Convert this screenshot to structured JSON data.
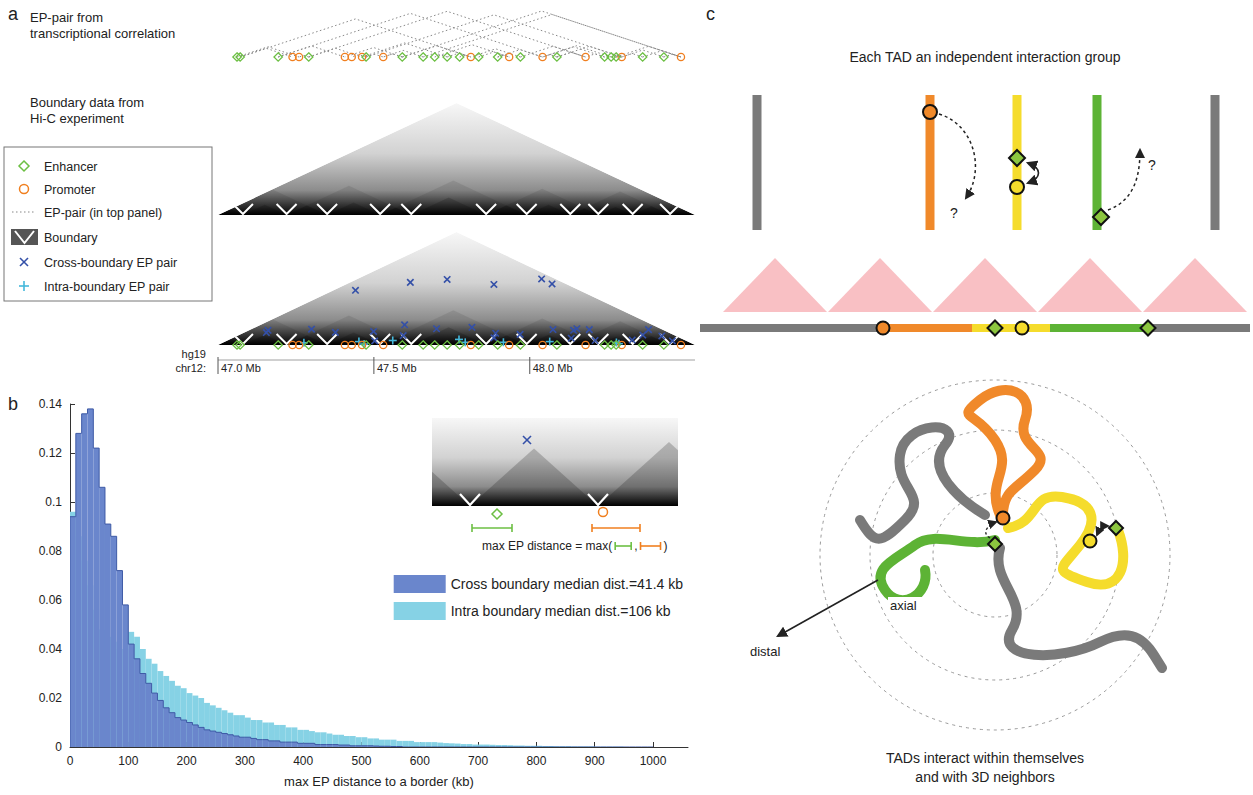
{
  "panel_letters": [
    "a",
    "b",
    "c"
  ],
  "panel_a": {
    "track_labels": {
      "ep_pairs": [
        "EP-pair from",
        "transcriptional correlation"
      ],
      "boundaries": [
        "Boundary data from",
        "Hi-C experiment"
      ]
    },
    "legend": [
      {
        "marker": "diamond",
        "label": "Enhancer",
        "color": "#6cbf43"
      },
      {
        "marker": "circle",
        "label": "Promoter",
        "color": "#f07f1f"
      },
      {
        "marker": "dotted_line",
        "label": "EP-pair (in top panel)",
        "color": "#888888"
      },
      {
        "marker": "boundary",
        "label": "Boundary",
        "color": "#555555"
      },
      {
        "marker": "cross",
        "label": "Cross-boundary EP pair",
        "color": "#3450a8"
      },
      {
        "marker": "plus",
        "label": "Intra-boundary EP pair",
        "color": "#45b8db"
      }
    ],
    "genome": "hg19",
    "chromosome": "chr12:",
    "xlim": [
      47.0,
      48.53
    ],
    "xticks": [
      {
        "value": 47.0,
        "label": "47.0 Mb"
      },
      {
        "value": 47.5,
        "label": "47.5 Mb"
      },
      {
        "value": 48.0,
        "label": "48.0 Mb"
      }
    ],
    "enhancers": [
      47.061,
      47.071,
      47.193,
      47.291,
      47.475,
      47.591,
      47.658,
      47.695,
      47.735,
      47.775,
      47.836,
      47.897,
      47.97,
      48.087,
      48.24,
      48.261,
      48.277,
      48.362,
      48.43
    ],
    "promoters": [
      47.239,
      47.26,
      47.407,
      47.429,
      47.462,
      47.53,
      47.811,
      47.934,
      48.041,
      48.179,
      48.295,
      48.485
    ],
    "boundaries": [
      47.08,
      47.22,
      47.35,
      47.52,
      47.62,
      47.86,
      47.99,
      48.13,
      48.22,
      48.33,
      48.45
    ],
    "cross_boundary_pairs": [
      [
        47.071,
        47.239
      ],
      [
        47.193,
        47.407
      ],
      [
        47.291,
        47.462
      ],
      [
        47.475,
        47.53
      ],
      [
        47.591,
        47.407
      ],
      [
        47.658,
        47.53
      ],
      [
        47.695,
        47.934
      ],
      [
        47.836,
        47.934
      ],
      [
        47.897,
        48.041
      ],
      [
        47.97,
        48.179
      ],
      [
        48.087,
        48.179
      ],
      [
        48.24,
        48.179
      ],
      [
        48.087,
        48.295
      ],
      [
        48.362,
        48.295
      ],
      [
        48.43,
        48.485
      ],
      [
        48.362,
        48.485
      ],
      [
        47.735,
        47.462
      ],
      [
        48.261,
        48.041
      ],
      [
        47.97,
        47.811
      ],
      [
        48.277,
        48.485
      ],
      [
        48.43,
        48.295
      ],
      [
        47.061,
        47.26
      ],
      [
        47.591,
        47.811
      ],
      [
        48.24,
        48.041
      ],
      [
        47.193,
        48.041
      ],
      [
        47.291,
        48.179
      ],
      [
        47.591,
        48.485
      ],
      [
        47.475,
        48.295
      ],
      [
        47.071,
        47.811
      ],
      [
        47.658,
        48.485
      ]
    ],
    "intra_boundary_pairs": [
      [
        47.291,
        47.26
      ],
      [
        47.475,
        47.429
      ],
      [
        47.475,
        47.462
      ],
      [
        47.591,
        47.53
      ],
      [
        47.735,
        47.811
      ],
      [
        47.775,
        47.811
      ],
      [
        47.897,
        47.934
      ],
      [
        48.087,
        48.041
      ],
      [
        48.261,
        48.295
      ],
      [
        48.277,
        48.295
      ]
    ]
  },
  "chart_data": {
    "type": "histogram",
    "xlabel": "max EP distance to a border (kb)",
    "bins": [
      0,
      10,
      20,
      30,
      40,
      50,
      60,
      70,
      80,
      90,
      100,
      110,
      120,
      130,
      140,
      150,
      160,
      170,
      180,
      190,
      200,
      210,
      220,
      230,
      240,
      250,
      260,
      270,
      280,
      290,
      300,
      310,
      320,
      330,
      340,
      350,
      360,
      370,
      380,
      390,
      400,
      410,
      420,
      430,
      440,
      450,
      460,
      470,
      480,
      490,
      500,
      510,
      520,
      530,
      540,
      550,
      560,
      570,
      580,
      590,
      600,
      610,
      620,
      630,
      640,
      650,
      660,
      670,
      680,
      690,
      700,
      710,
      720,
      730,
      740,
      750,
      760,
      770,
      780,
      790,
      800,
      810,
      820,
      830,
      840,
      850,
      860,
      870,
      880,
      890,
      900,
      910,
      920,
      930,
      940,
      950,
      960,
      970,
      980,
      990,
      1000
    ],
    "series": [
      {
        "name": "Cross boundary median dist.=41.4 kb",
        "color": "#6a86cc",
        "values": [
          0.094,
          0.128,
          0.136,
          0.138,
          0.122,
          0.106,
          0.091,
          0.086,
          0.072,
          0.058,
          0.042,
          0.036,
          0.03,
          0.026,
          0.022,
          0.019,
          0.016,
          0.014,
          0.012,
          0.011,
          0.01,
          0.009,
          0.008,
          0.007,
          0.0065,
          0.006,
          0.0055,
          0.005,
          0.0045,
          0.004,
          0.004,
          0.0035,
          0.003,
          0.003,
          0.0025,
          0.0025,
          0.002,
          0.002,
          0.002,
          0.0015,
          0.0015,
          0.0015,
          0.001,
          0.001,
          0.001,
          0.001,
          0.0008,
          0.0008,
          0.0005,
          0.0005,
          0.0005,
          0.0005,
          0.0004,
          0.0003,
          0.0003,
          0.0002,
          0.0002,
          0,
          0,
          0,
          0,
          0,
          0,
          0,
          0,
          0,
          0,
          0,
          0,
          0,
          0,
          0,
          0,
          0,
          0,
          0,
          0,
          0,
          0,
          0,
          0,
          0,
          0,
          0,
          0,
          0,
          0,
          0,
          0,
          0,
          0,
          0,
          0,
          0,
          0,
          0,
          0,
          0,
          0,
          0
        ]
      },
      {
        "name": "Intra boundary median dist.=106 kb",
        "color": "#86d2e5",
        "values": [
          0.096,
          0.086,
          0.076,
          0.066,
          0.056,
          0.048,
          0.045,
          0.043,
          0.04,
          0.04,
          0.047,
          0.045,
          0.04,
          0.036,
          0.034,
          0.031,
          0.029,
          0.027,
          0.025,
          0.024,
          0.022,
          0.021,
          0.02,
          0.018,
          0.017,
          0.016,
          0.015,
          0.014,
          0.013,
          0.013,
          0.012,
          0.011,
          0.011,
          0.01,
          0.01,
          0.009,
          0.009,
          0.008,
          0.008,
          0.007,
          0.007,
          0.0065,
          0.006,
          0.006,
          0.0055,
          0.005,
          0.005,
          0.0045,
          0.0045,
          0.004,
          0.004,
          0.0035,
          0.0035,
          0.003,
          0.003,
          0.003,
          0.0025,
          0.0025,
          0.0025,
          0.002,
          0.002,
          0.002,
          0.002,
          0.0018,
          0.0016,
          0.0015,
          0.0014,
          0.0012,
          0.0012,
          0.001,
          0.001,
          0.001,
          0.0009,
          0.0008,
          0.0008,
          0.0007,
          0.0006,
          0.0006,
          0.0005,
          0.0005,
          0.0005,
          0.0004,
          0.0004,
          0.0003,
          0.0003,
          0.0003,
          0.0002,
          0.0002,
          0.0002,
          0.0002,
          0.0001,
          0.0001,
          0.0001,
          0.0001,
          0.0001,
          0,
          0,
          0,
          0,
          0
        ]
      }
    ],
    "xlim": [
      0,
      1060
    ],
    "xticks": [
      0,
      100,
      200,
      300,
      400,
      500,
      600,
      700,
      800,
      900,
      1000
    ],
    "ylim": [
      0,
      0.14
    ],
    "yticks": [
      0,
      0.02,
      0.04,
      0.06,
      0.08,
      0.1,
      0.12,
      0.14
    ],
    "grid": false,
    "legend": "right",
    "annotations": {
      "inset_formula": [
        "max EP distance = max(",
        ",",
        ")"
      ]
    }
  },
  "panel_c": {
    "title": "Each TAD an independent interaction group",
    "question_marks": [
      "?",
      "?"
    ],
    "axial_label": "axial",
    "distal_label": "distal",
    "caption": [
      "TADs interact within themselves",
      "and with 3D neighbors"
    ]
  }
}
